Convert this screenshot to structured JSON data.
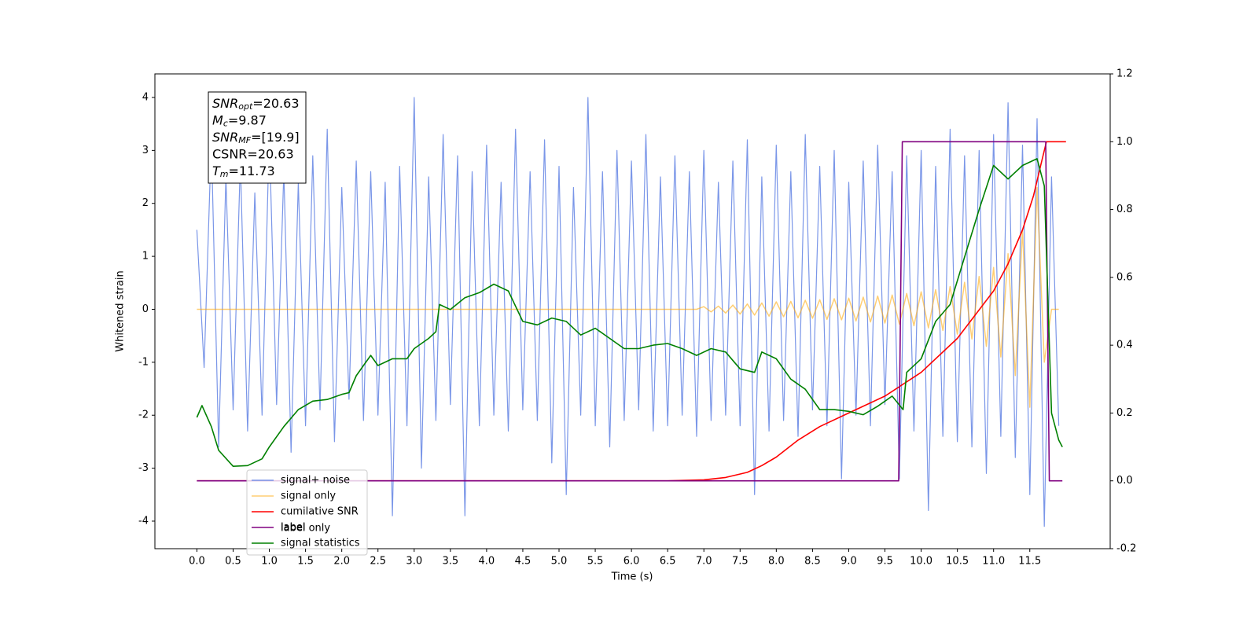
{
  "chart_data": {
    "type": "line",
    "xlabel": "Time (s)",
    "ylabel": "Whitened strain",
    "xlim": [
      -0.58,
      12.61
    ],
    "ylim": [
      -4.52,
      4.445
    ],
    "y2lim": [
      -0.2,
      1.2
    ],
    "xticks": [
      {
        "value": 0,
        "label": "0.0"
      },
      0.5,
      {
        "value": 1,
        "label": "1.0"
      },
      1.5,
      {
        "value": 2,
        "label": "2.0"
      },
      2.5,
      {
        "value": 3,
        "label": "3.0"
      },
      3.5,
      {
        "value": 4,
        "label": "4.0"
      },
      4.5,
      {
        "value": 5,
        "label": "5.0"
      },
      5.5,
      {
        "value": 6,
        "label": "6.0"
      },
      6.5,
      {
        "value": 7,
        "label": "7.0"
      },
      7.5,
      {
        "value": 8,
        "label": "8.0"
      },
      8.5,
      {
        "value": 9,
        "label": "9.0"
      },
      9.5,
      {
        "value": 10,
        "label": "10.0"
      },
      10.5,
      {
        "value": 11,
        "label": "11.0"
      },
      11.5
    ],
    "yticks": [
      -4,
      -3,
      -2,
      -1,
      0,
      1,
      2,
      3,
      4
    ],
    "y2ticks": [
      -0.2,
      {
        "value": 0,
        "label": "0.0"
      },
      0.2,
      0.4,
      0.6,
      0.8,
      {
        "value": 1,
        "label": "1.0"
      },
      1.2
    ],
    "x": [
      0.0,
      0.1,
      0.2,
      0.3,
      0.4,
      0.5,
      0.6,
      0.7,
      0.8,
      0.9,
      1.0,
      1.1,
      1.2,
      1.3,
      1.4,
      1.5,
      1.6,
      1.7,
      1.8,
      1.9,
      2.0,
      2.1,
      2.2,
      2.3,
      2.4,
      2.5,
      2.6,
      2.7,
      2.8,
      2.9,
      3.0,
      3.1,
      3.2,
      3.3,
      3.4,
      3.5,
      3.6,
      3.7,
      3.8,
      3.9,
      4.0,
      4.1,
      4.2,
      4.3,
      4.4,
      4.5,
      4.6,
      4.7,
      4.8,
      4.9,
      5.0,
      5.1,
      5.2,
      5.3,
      5.4,
      5.5,
      5.6,
      5.7,
      5.8,
      5.9,
      6.0,
      6.1,
      6.2,
      6.3,
      6.4,
      6.5,
      6.6,
      6.7,
      6.8,
      6.9,
      7.0,
      7.1,
      7.2,
      7.3,
      7.4,
      7.5,
      7.6,
      7.7,
      7.8,
      7.9,
      8.0,
      8.1,
      8.2,
      8.3,
      8.4,
      8.5,
      8.6,
      8.7,
      8.8,
      8.9,
      9.0,
      9.1,
      9.2,
      9.3,
      9.4,
      9.5,
      9.6,
      9.7,
      9.8,
      9.9,
      10.0,
      10.1,
      10.2,
      10.3,
      10.4,
      10.5,
      10.6,
      10.7,
      10.8,
      10.9,
      11.0,
      11.1,
      11.2,
      11.3,
      11.4,
      11.5,
      11.6,
      11.7,
      11.8,
      11.9
    ],
    "series": [
      {
        "name": "signal+ noise",
        "color": "#6b8be6",
        "values": [
          1.5,
          -1.1,
          3.2,
          -2.6,
          2.5,
          -1.9,
          2.8,
          -2.3,
          2.2,
          -2.0,
          3.3,
          -1.8,
          2.6,
          -2.7,
          2.4,
          -2.2,
          2.9,
          -1.9,
          3.4,
          -2.5,
          2.3,
          -1.7,
          2.8,
          -2.1,
          2.6,
          -2.0,
          2.4,
          -3.9,
          2.7,
          -2.2,
          4.0,
          -3.0,
          2.5,
          -2.1,
          3.3,
          -1.8,
          2.9,
          -3.9,
          2.6,
          -2.2,
          3.1,
          -2.0,
          2.4,
          -2.3,
          3.4,
          -1.9,
          2.6,
          -2.1,
          3.2,
          -2.9,
          2.7,
          -3.5,
          2.3,
          -2.0,
          4.0,
          -2.2,
          2.6,
          -2.6,
          3.0,
          -2.1,
          2.8,
          -1.9,
          3.3,
          -2.3,
          2.5,
          -2.2,
          2.9,
          -2.0,
          2.6,
          -2.4,
          3.0,
          -2.1,
          2.4,
          -2.0,
          2.8,
          -2.2,
          3.2,
          -3.5,
          2.5,
          -2.3,
          3.1,
          -2.1,
          2.6,
          -2.4,
          3.3,
          -1.9,
          2.7,
          -2.2,
          3.0,
          -3.2,
          2.4,
          -2.0,
          2.8,
          -2.2,
          3.1,
          -1.8,
          2.6,
          -3.2,
          2.9,
          -2.3,
          3.0,
          -3.8,
          2.7,
          -2.4,
          3.4,
          -2.5,
          2.9,
          -2.6,
          3.0,
          -3.1,
          3.3,
          -2.4,
          3.9,
          -2.8,
          3.1,
          -3.5,
          3.6,
          -4.1,
          2.5,
          -2.2
        ]
      },
      {
        "name": "signal only",
        "color": "#ffa500",
        "values": [
          0,
          0,
          0,
          0,
          0,
          0,
          0,
          0,
          0,
          0,
          0,
          0,
          0,
          0,
          0,
          0,
          0,
          0,
          0,
          0,
          0,
          0,
          0,
          0,
          0,
          0,
          0,
          0,
          0,
          0,
          0,
          0,
          0,
          0,
          0,
          0,
          0,
          0,
          0,
          0,
          0,
          0,
          0,
          0,
          0,
          0,
          0,
          0,
          0,
          0,
          0,
          0,
          0,
          0,
          0,
          0,
          0,
          0,
          0,
          0,
          0,
          0,
          0,
          0,
          0,
          0,
          0,
          0,
          0,
          0,
          0.05,
          -0.05,
          0.06,
          -0.07,
          0.08,
          -0.09,
          0.1,
          -0.11,
          0.12,
          -0.13,
          0.14,
          -0.14,
          0.15,
          -0.16,
          0.17,
          -0.17,
          0.18,
          -0.19,
          0.2,
          -0.2,
          0.21,
          -0.22,
          0.23,
          -0.24,
          0.25,
          -0.26,
          0.27,
          -0.28,
          0.3,
          -0.31,
          0.33,
          -0.35,
          0.37,
          -0.4,
          0.43,
          -0.47,
          0.51,
          -0.56,
          0.62,
          -0.7,
          0.79,
          -0.9,
          1.05,
          -1.25,
          1.5,
          -1.85,
          2.3,
          -1.0,
          0,
          0
        ]
      },
      {
        "name": "cumilative SNR",
        "color": "#ff0000",
        "axis": "y2",
        "x": [
          0,
          6.5,
          7.0,
          7.3,
          7.6,
          7.8,
          8.0,
          8.3,
          8.6,
          9.0,
          9.5,
          10.0,
          10.5,
          11.0,
          11.2,
          11.4,
          11.55,
          11.65,
          11.73,
          12.0
        ],
        "values": [
          0,
          0,
          0.003,
          0.01,
          0.025,
          0.045,
          0.07,
          0.12,
          0.16,
          0.2,
          0.25,
          0.32,
          0.42,
          0.56,
          0.64,
          0.74,
          0.84,
          0.93,
          1.0,
          1.0
        ]
      },
      {
        "name": "label",
        "color": "#800080",
        "axis": "y2",
        "x": [
          0,
          9.69,
          9.74,
          11.72,
          11.77,
          11.95
        ],
        "values": [
          0,
          0,
          1,
          1,
          0,
          0
        ]
      },
      {
        "name": "signal statistics",
        "color": "#008000",
        "axis": "y2",
        "x": [
          0,
          0.07,
          0.2,
          0.3,
          0.5,
          0.7,
          0.9,
          1.0,
          1.2,
          1.4,
          1.6,
          1.8,
          2.0,
          2.1,
          2.2,
          2.3,
          2.4,
          2.5,
          2.7,
          2.9,
          3.0,
          3.2,
          3.3,
          3.35,
          3.5,
          3.7,
          3.9,
          4.1,
          4.3,
          4.5,
          4.7,
          4.9,
          5.1,
          5.3,
          5.5,
          5.7,
          5.9,
          6.1,
          6.3,
          6.5,
          6.7,
          6.9,
          7.1,
          7.3,
          7.5,
          7.7,
          7.8,
          8.0,
          8.2,
          8.4,
          8.6,
          8.8,
          9.0,
          9.2,
          9.4,
          9.6,
          9.75,
          9.8,
          10.0,
          10.2,
          10.4,
          10.6,
          10.8,
          11.0,
          11.2,
          11.4,
          11.6,
          11.7,
          11.8,
          11.9,
          11.95
        ],
        "values": [
          0.187,
          0.222,
          0.16,
          0.09,
          0.043,
          0.045,
          0.065,
          0.1,
          0.16,
          0.21,
          0.235,
          0.24,
          0.255,
          0.26,
          0.31,
          0.34,
          0.37,
          0.34,
          0.36,
          0.36,
          0.39,
          0.42,
          0.44,
          0.52,
          0.505,
          0.54,
          0.555,
          0.58,
          0.56,
          0.47,
          0.46,
          0.48,
          0.47,
          0.43,
          0.45,
          0.42,
          0.39,
          0.39,
          0.4,
          0.405,
          0.39,
          0.37,
          0.39,
          0.38,
          0.33,
          0.32,
          0.38,
          0.36,
          0.3,
          0.27,
          0.21,
          0.21,
          0.205,
          0.195,
          0.22,
          0.25,
          0.21,
          0.32,
          0.36,
          0.47,
          0.52,
          0.66,
          0.8,
          0.93,
          0.89,
          0.93,
          0.95,
          0.87,
          0.2,
          0.12,
          0.1
        ]
      }
    ],
    "legend_ghost": "label only",
    "annotation": [
      {
        "base": "SNR",
        "sub": "opt",
        "rest": "=20.63"
      },
      {
        "base": "M",
        "sub": "c",
        "rest": "=9.87"
      },
      {
        "base": "SNR",
        "sub": "MF",
        "rest": "=[19.9]"
      },
      {
        "base": "",
        "sub": "",
        "rest": "CSNR=20.63"
      },
      {
        "base": "T",
        "sub": "m",
        "rest": "=11.73"
      }
    ]
  }
}
